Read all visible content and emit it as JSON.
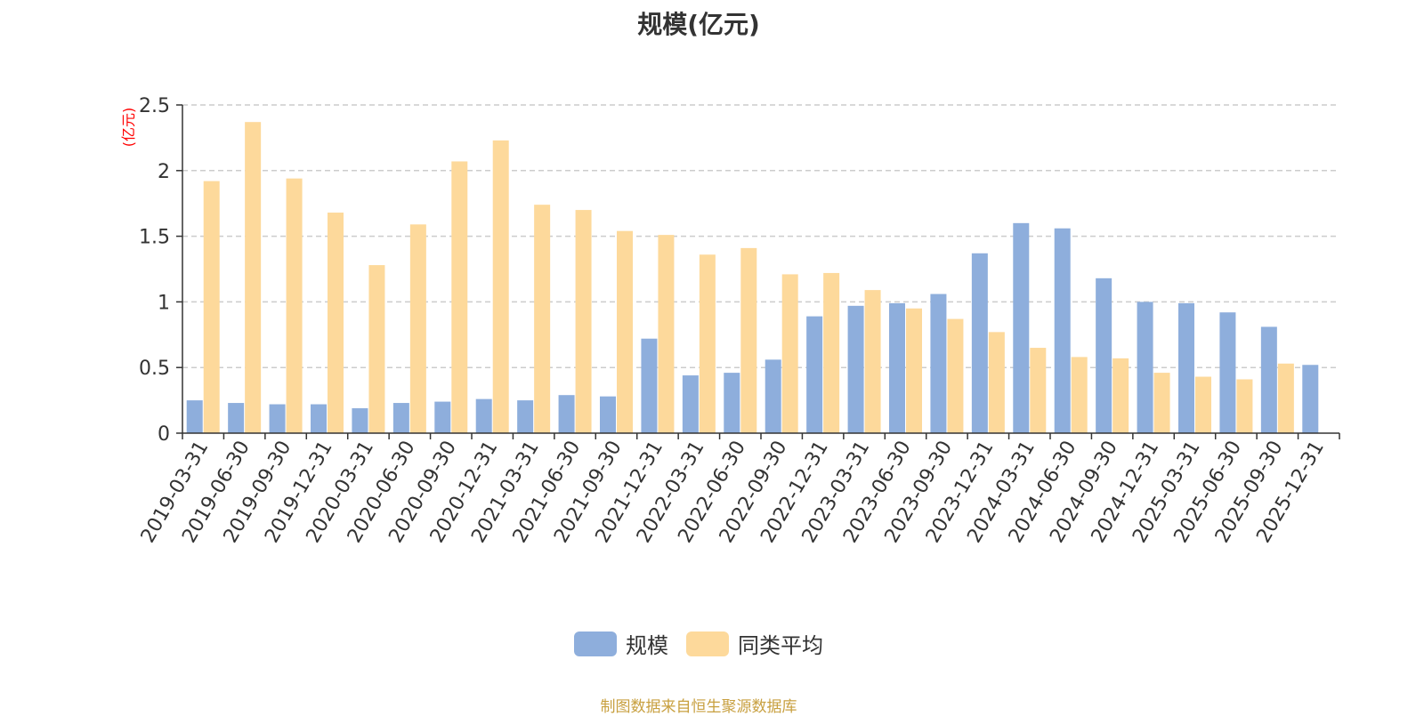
{
  "chart_data": {
    "type": "bar",
    "title": "规模(亿元)",
    "ylabel": "(亿元)",
    "xlabel": "",
    "ylim": [
      0,
      2.5
    ],
    "yticks": [
      "0",
      "0.5",
      "1",
      "1.5",
      "2",
      "2.5"
    ],
    "ytick_values": [
      0,
      0.5,
      1,
      1.5,
      2,
      2.5
    ],
    "grid": true,
    "legend_position": "bottom",
    "categories": [
      "2019-03-31",
      "2019-06-30",
      "2019-09-30",
      "2019-12-31",
      "2020-03-31",
      "2020-06-30",
      "2020-09-30",
      "2020-12-31",
      "2021-03-31",
      "2021-06-30",
      "2021-09-30",
      "2021-12-31",
      "2022-03-31",
      "2022-06-30",
      "2022-09-30",
      "2022-12-31",
      "2023-03-31",
      "2023-06-30",
      "2023-09-30",
      "2023-12-31",
      "2024-03-31",
      "2024-06-30",
      "2024-09-30",
      "2024-12-31",
      "2025-03-31",
      "2025-06-30",
      "2025-09-30",
      "2025-12-31"
    ],
    "series": [
      {
        "name": "规模",
        "color": "#8eaedc",
        "values": [
          0.25,
          0.23,
          0.22,
          0.22,
          0.19,
          0.23,
          0.24,
          0.26,
          0.25,
          0.29,
          0.28,
          0.72,
          0.44,
          0.46,
          0.56,
          0.89,
          0.97,
          0.99,
          1.06,
          1.37,
          1.6,
          1.56,
          1.18,
          1.0,
          0.99,
          0.92,
          0.81,
          0.52
        ]
      },
      {
        "name": "同类平均",
        "color": "#fdd99b",
        "values": [
          1.92,
          2.37,
          1.94,
          1.68,
          1.28,
          1.59,
          2.07,
          2.23,
          1.74,
          1.7,
          1.54,
          1.51,
          1.36,
          1.41,
          1.21,
          1.22,
          1.09,
          0.95,
          0.87,
          0.77,
          0.65,
          0.58,
          0.57,
          0.46,
          0.43,
          0.41,
          0.53,
          null
        ]
      }
    ],
    "source_note": "制图数据来自恒生聚源数据库"
  }
}
